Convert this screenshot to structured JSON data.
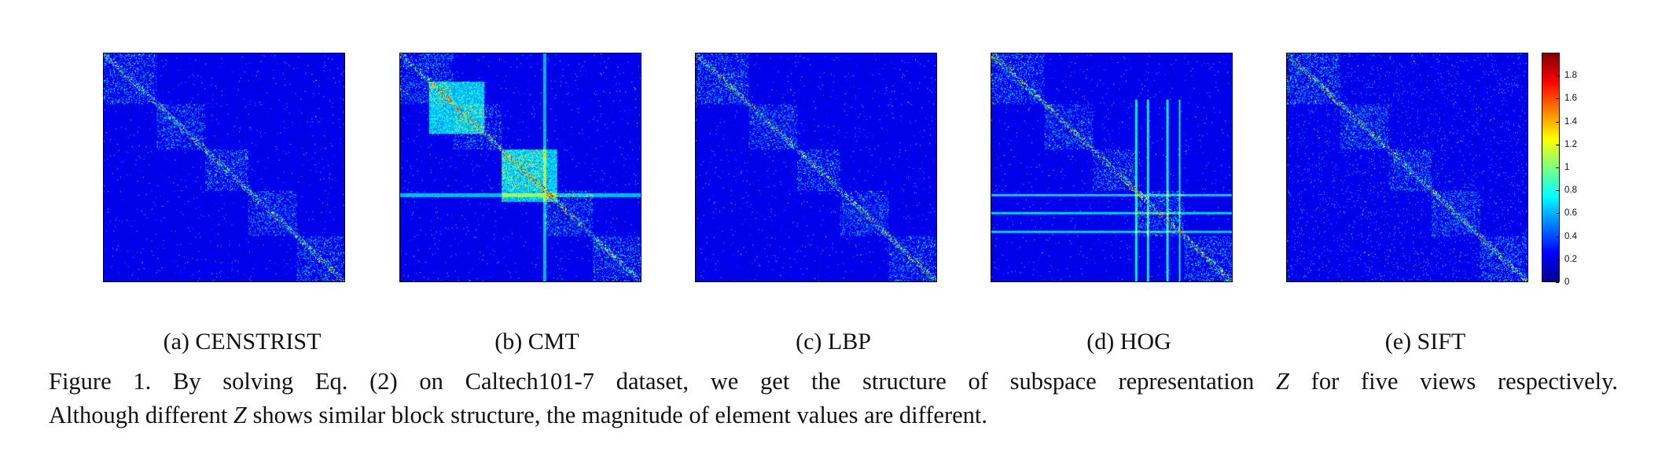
{
  "figure": {
    "panels": [
      {
        "id": "a",
        "label": "(a)  CENSTRIST",
        "variant": "blocks-diag"
      },
      {
        "id": "b",
        "label": "(b)  CMT",
        "variant": "strong-blocks"
      },
      {
        "id": "c",
        "label": "(c)  LBP",
        "variant": "diag"
      },
      {
        "id": "d",
        "label": "(d)  HOG",
        "variant": "grid-lines"
      },
      {
        "id": "e",
        "label": "(e)  SIFT",
        "variant": "noisy-diag"
      }
    ],
    "colorbar": {
      "ticks": [
        "0",
        "0.2",
        "0.4",
        "0.6",
        "0.8",
        "1",
        "1.2",
        "1.4",
        "1.6",
        "1.8"
      ],
      "min": 0,
      "max": 2,
      "colormap": "jet"
    }
  },
  "caption": {
    "line1_a": "Figure 1. By solving Eq. (2) on Caltech101-7 dataset, we get the structure of subspace representation",
    "line1_var": "Z",
    "line1_b": "for five views respectively.",
    "line2_a": "Although different",
    "line2_var": "Z",
    "line2_b": "shows similar block structure, the magnitude of element values are different."
  }
}
